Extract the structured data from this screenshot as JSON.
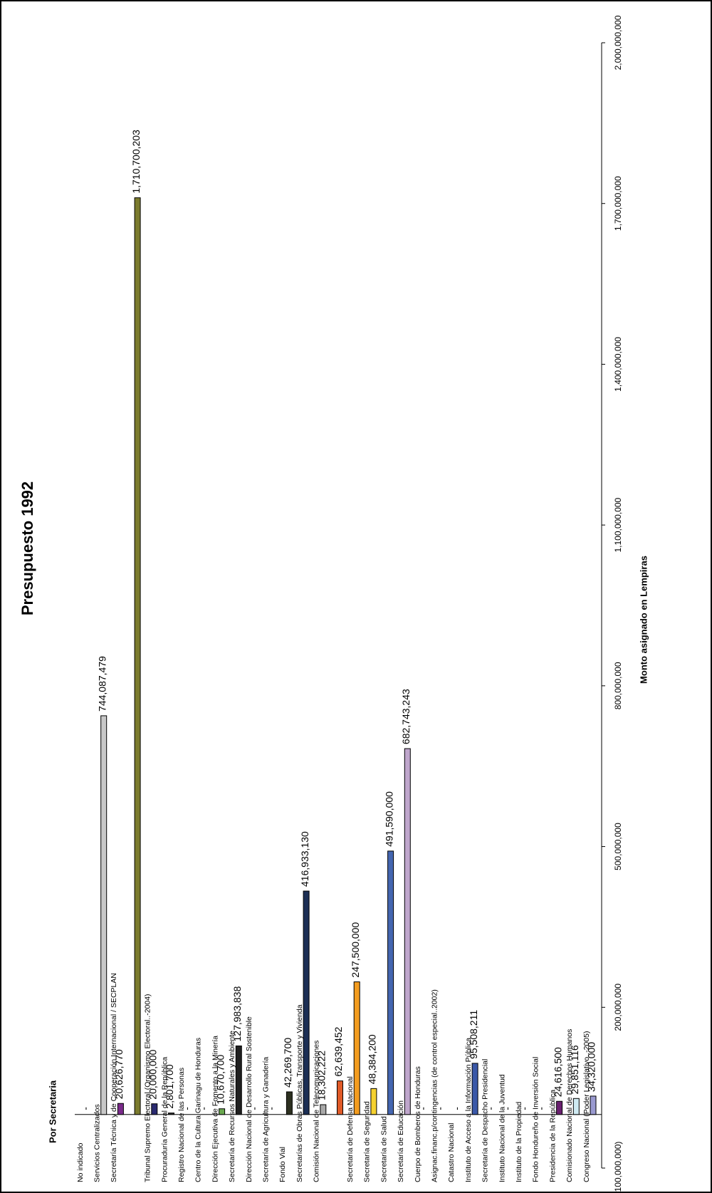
{
  "chart_data": {
    "type": "bar",
    "title": "Presupuesto 1992",
    "x_label": "Por Secretaria",
    "y_label": "Monto asignado en Lempiras",
    "categories": [
      "No indicado",
      "Servicios Centralizados",
      "Secretaría Técnica y de Cooperación Internacional / SECPLAN",
      null,
      "Tribunal Supremo Electoral (Organismo Electoral..-2004)",
      "Procuraduría General de la República",
      "Registro Nacional de las Personas",
      "Centro de la Cultura Garinagu de Honduras",
      "Dirección Ejecutiva de Fomento a la Minería",
      "Secretaría de Recursos Naturales y Ambiente",
      "Dirección Nacional de Desarrollo Rural Sostenible",
      "Secretaría de Agricultura y Ganadería",
      "Fondo Vial",
      "Secretarías de Obras Públicas, Transporte y Vivienda",
      "Comisión Nacional de Telecomunicaciones",
      null,
      "Secretaría de Defensa Nacional",
      "Secretaría de Seguridad",
      "Secretaría de Salud",
      "Secretaría de Educación",
      "Cuerpo de Bomberos de Honduras",
      "Asignac.financ.p/contingencias (de control especial..2002)",
      "Catastro Nacional",
      "Instituto de Acceso a la Información Pública",
      "Secretaría de Despacho Presidencial",
      "Instituto Nacional de la Juventud",
      "Instituto de la Propiedad",
      "Fondo Hondureño de Inversión Social",
      "Presidencia de la República",
      "Comisionado Nacional de Derechos Humanos",
      "Congreso Nacional (Poder Legislativo..-2005)"
    ],
    "values": [
      0,
      744087479,
      20626770,
      1710700203,
      20000000,
      2801700,
      0,
      0,
      10670700,
      127983838,
      0,
      0,
      42269700,
      416933130,
      18302222,
      62639452,
      247500000,
      48384200,
      491590000,
      682743243,
      0,
      0,
      0,
      95508211,
      0,
      0,
      0,
      0,
      24616500,
      29851116,
      34320000
    ],
    "value_labels": [
      "-",
      "744,087,479",
      "20,626,770",
      "1,710,700,203",
      "20,000,000",
      "2,801,700",
      "-",
      "-",
      "10,670,700",
      "127,983,838",
      "-",
      "-",
      "42,269,700",
      "416,933,130",
      "18,302,222",
      "62,639,452",
      "247,500,000",
      "48,384,200",
      "491,590,000",
      "682,743,243",
      "-",
      "-",
      "-",
      "95,508,211",
      "-",
      "-",
      "-",
      "-",
      "24,616,500",
      "29,851,116",
      "34,320,000"
    ],
    "colors": [
      "#c0c0c0",
      "#c8c8c8",
      "#7a2a8a",
      "#7b7b2e",
      "#2a2a70",
      "#303030",
      "#c0c0c0",
      "#c0c0c0",
      "#6aa84f",
      "#202020",
      "#c0c0c0",
      "#c0c0c0",
      "#2d3020",
      "#1c2f55",
      "#a8a8a8",
      "#e05a28",
      "#f39c1f",
      "#f5d130",
      "#4466b0",
      "#bfa6cc",
      "#c0c0c0",
      "#c0c0c0",
      "#c0c0c0",
      "#3a58a8",
      "#c0c0c0",
      "#c0c0c0",
      "#c0c0c0",
      "#c0c0c0",
      "#6a2070",
      "#cfeaf2",
      "#9a9ad0"
    ],
    "ylim": [
      -100000000,
      2000000000
    ],
    "yticks": [
      {
        "value": -100000000,
        "label": "(100,000,000)"
      },
      {
        "value": 200000000,
        "label": "200,000,000"
      },
      {
        "value": 500000000,
        "label": "500,000,000"
      },
      {
        "value": 800000000,
        "label": "800,000,000"
      },
      {
        "value": 1100000000,
        "label": "1,100,000,000"
      },
      {
        "value": 1400000000,
        "label": "1,400,000,000"
      },
      {
        "value": 1700000000,
        "label": "1,700,000,000"
      },
      {
        "value": 2000000000,
        "label": "2,000,000,000"
      }
    ]
  }
}
